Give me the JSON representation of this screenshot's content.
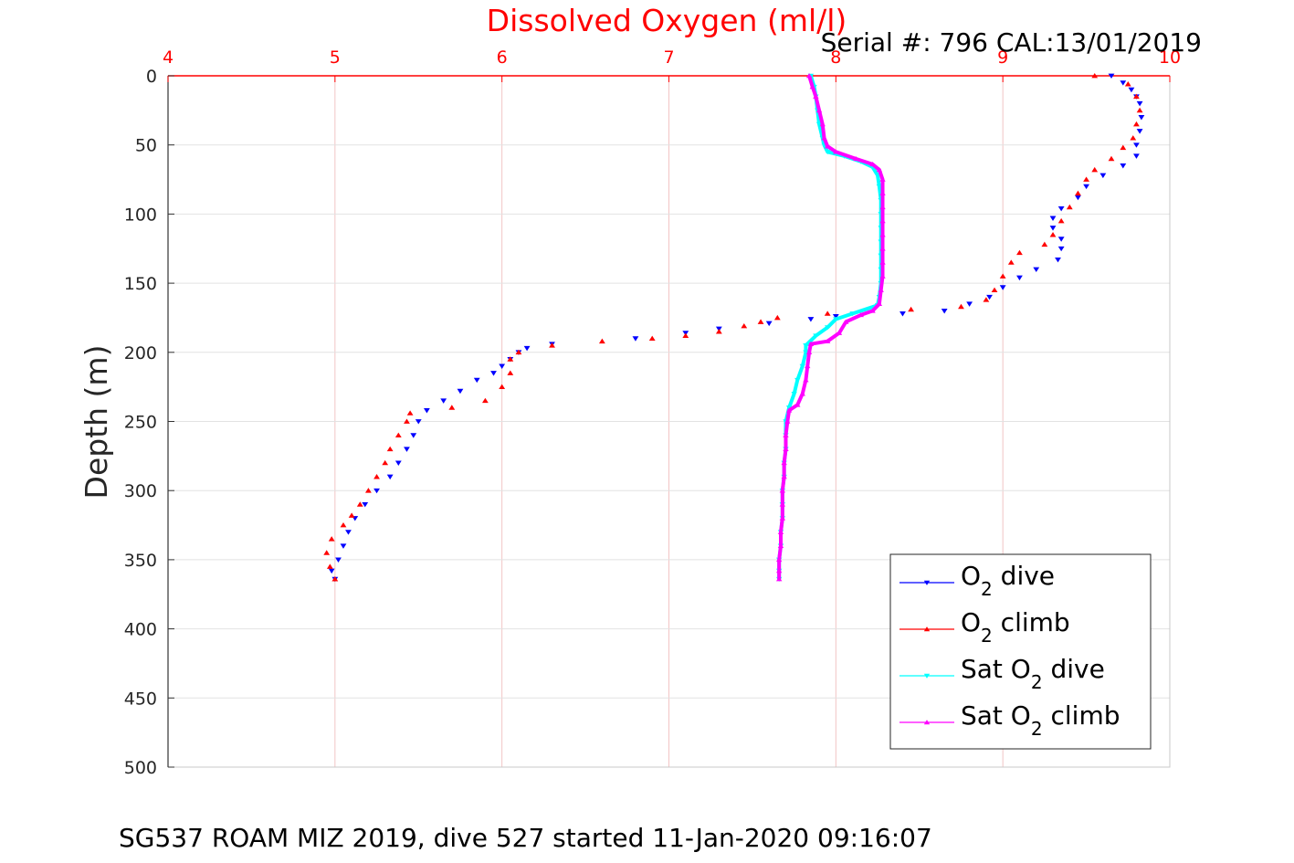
{
  "chart_data": {
    "type": "scatter",
    "title": "Dissolved Oxygen (ml/l)",
    "serial": "Serial #: 796  CAL:13/01/2019",
    "ylabel": "Depth (m)",
    "footer": "SG537 ROAM MIZ 2019, dive 527 started 11-Jan-2020 09:16:07",
    "xlim": [
      4,
      10
    ],
    "ylim": [
      0,
      500
    ],
    "y_reversed": true,
    "x_axis_position": "top",
    "x_ticks": [
      "4",
      "5",
      "6",
      "7",
      "8",
      "9",
      "10"
    ],
    "y_ticks": [
      "0",
      "50",
      "100",
      "150",
      "200",
      "250",
      "300",
      "350",
      "400",
      "450",
      "500"
    ],
    "grid": true,
    "legend_position": "bottom-right",
    "colors": {
      "title": "#ff0000",
      "x_ticks": "#ff0000",
      "grid": "#f2c5c5",
      "grid_h": "#e2e2e2"
    },
    "series": [
      {
        "name": "O2 dive",
        "label_parts": [
          "O",
          "2",
          " dive"
        ],
        "color": "#0000ff",
        "marker": "triangle-down",
        "points": [
          [
            9.65,
            0
          ],
          [
            9.72,
            5
          ],
          [
            9.77,
            10
          ],
          [
            9.8,
            15
          ],
          [
            9.82,
            20
          ],
          [
            9.83,
            30
          ],
          [
            9.82,
            40
          ],
          [
            9.8,
            50
          ],
          [
            9.8,
            58
          ],
          [
            9.72,
            65
          ],
          [
            9.6,
            72
          ],
          [
            9.5,
            80
          ],
          [
            9.45,
            88
          ],
          [
            9.35,
            96
          ],
          [
            9.3,
            103
          ],
          [
            9.3,
            110
          ],
          [
            9.35,
            118
          ],
          [
            9.35,
            125
          ],
          [
            9.33,
            133
          ],
          [
            9.2,
            140
          ],
          [
            9.1,
            146
          ],
          [
            9.0,
            153
          ],
          [
            8.92,
            160
          ],
          [
            8.8,
            165
          ],
          [
            8.65,
            170
          ],
          [
            8.4,
            172
          ],
          [
            8.0,
            174
          ],
          [
            7.85,
            176
          ],
          [
            7.6,
            179
          ],
          [
            7.3,
            183
          ],
          [
            7.1,
            186
          ],
          [
            6.8,
            190
          ],
          [
            6.3,
            194
          ],
          [
            6.15,
            197
          ],
          [
            6.1,
            200
          ],
          [
            6.05,
            205
          ],
          [
            6.0,
            210
          ],
          [
            5.95,
            215
          ],
          [
            5.85,
            220
          ],
          [
            5.75,
            228
          ],
          [
            5.65,
            235
          ],
          [
            5.55,
            242
          ],
          [
            5.5,
            250
          ],
          [
            5.47,
            260
          ],
          [
            5.43,
            270
          ],
          [
            5.38,
            280
          ],
          [
            5.33,
            290
          ],
          [
            5.25,
            300
          ],
          [
            5.18,
            310
          ],
          [
            5.12,
            320
          ],
          [
            5.08,
            330
          ],
          [
            5.05,
            340
          ],
          [
            5.02,
            350
          ],
          [
            4.98,
            358
          ],
          [
            5.0,
            364
          ]
        ]
      },
      {
        "name": "O2 climb",
        "label_parts": [
          "O",
          "2",
          " climb"
        ],
        "color": "#ff0000",
        "marker": "triangle-up",
        "points": [
          [
            5.0,
            364
          ],
          [
            4.97,
            355
          ],
          [
            4.95,
            345
          ],
          [
            4.98,
            335
          ],
          [
            5.05,
            325
          ],
          [
            5.1,
            318
          ],
          [
            5.15,
            310
          ],
          [
            5.2,
            300
          ],
          [
            5.25,
            290
          ],
          [
            5.3,
            280
          ],
          [
            5.33,
            270
          ],
          [
            5.38,
            260
          ],
          [
            5.43,
            250
          ],
          [
            5.45,
            244
          ],
          [
            5.7,
            240
          ],
          [
            5.9,
            235
          ],
          [
            6.0,
            225
          ],
          [
            6.05,
            215
          ],
          [
            6.05,
            205
          ],
          [
            6.1,
            200
          ],
          [
            6.3,
            195
          ],
          [
            6.6,
            192
          ],
          [
            6.9,
            190
          ],
          [
            7.1,
            188
          ],
          [
            7.3,
            185
          ],
          [
            7.45,
            181
          ],
          [
            7.55,
            178
          ],
          [
            7.65,
            175
          ],
          [
            7.95,
            172
          ],
          [
            8.45,
            169
          ],
          [
            8.75,
            167
          ],
          [
            8.9,
            162
          ],
          [
            8.95,
            155
          ],
          [
            9.0,
            145
          ],
          [
            9.05,
            135
          ],
          [
            9.1,
            128
          ],
          [
            9.25,
            122
          ],
          [
            9.3,
            115
          ],
          [
            9.35,
            105
          ],
          [
            9.4,
            95
          ],
          [
            9.45,
            85
          ],
          [
            9.5,
            75
          ],
          [
            9.55,
            68
          ],
          [
            9.65,
            60
          ],
          [
            9.72,
            52
          ],
          [
            9.78,
            45
          ],
          [
            9.8,
            35
          ],
          [
            9.82,
            25
          ],
          [
            9.8,
            15
          ],
          [
            9.75,
            6
          ],
          [
            9.55,
            0
          ]
        ]
      },
      {
        "name": "Sat O2 dive",
        "label_parts": [
          "Sat O",
          "2",
          " dive"
        ],
        "color": "#00ffff",
        "marker": "triangle-down",
        "points": [
          [
            7.85,
            0
          ],
          [
            7.87,
            8
          ],
          [
            7.88,
            15
          ],
          [
            7.89,
            25
          ],
          [
            7.9,
            35
          ],
          [
            7.92,
            45
          ],
          [
            7.93,
            50
          ],
          [
            7.95,
            55
          ],
          [
            8.05,
            58
          ],
          [
            8.15,
            62
          ],
          [
            8.22,
            66
          ],
          [
            8.25,
            72
          ],
          [
            8.26,
            80
          ],
          [
            8.27,
            90
          ],
          [
            8.27,
            100
          ],
          [
            8.27,
            110
          ],
          [
            8.27,
            120
          ],
          [
            8.27,
            130
          ],
          [
            8.27,
            140
          ],
          [
            8.27,
            150
          ],
          [
            8.26,
            160
          ],
          [
            8.25,
            166
          ],
          [
            8.1,
            172
          ],
          [
            8.0,
            176
          ],
          [
            7.95,
            182
          ],
          [
            7.88,
            188
          ],
          [
            7.82,
            195
          ],
          [
            7.82,
            200
          ],
          [
            7.8,
            210
          ],
          [
            7.77,
            220
          ],
          [
            7.75,
            230
          ],
          [
            7.72,
            240
          ],
          [
            7.7,
            250
          ],
          [
            7.7,
            260
          ],
          [
            7.7,
            270
          ],
          [
            7.69,
            280
          ],
          [
            7.69,
            290
          ],
          [
            7.68,
            300
          ],
          [
            7.68,
            310
          ],
          [
            7.68,
            320
          ],
          [
            7.67,
            330
          ],
          [
            7.67,
            340
          ],
          [
            7.66,
            350
          ],
          [
            7.66,
            358
          ],
          [
            7.66,
            364
          ]
        ]
      },
      {
        "name": "Sat O2 climb",
        "label_parts": [
          "Sat O",
          "2",
          " climb"
        ],
        "color": "#ff00ff",
        "marker": "triangle-up",
        "points": [
          [
            7.66,
            364
          ],
          [
            7.66,
            358
          ],
          [
            7.66,
            350
          ],
          [
            7.67,
            340
          ],
          [
            7.67,
            330
          ],
          [
            7.68,
            320
          ],
          [
            7.68,
            310
          ],
          [
            7.68,
            300
          ],
          [
            7.69,
            290
          ],
          [
            7.69,
            280
          ],
          [
            7.7,
            270
          ],
          [
            7.7,
            260
          ],
          [
            7.71,
            250
          ],
          [
            7.72,
            242
          ],
          [
            7.77,
            238
          ],
          [
            7.8,
            230
          ],
          [
            7.82,
            220
          ],
          [
            7.83,
            210
          ],
          [
            7.84,
            200
          ],
          [
            7.85,
            194
          ],
          [
            7.95,
            192
          ],
          [
            8.02,
            186
          ],
          [
            8.06,
            178
          ],
          [
            8.15,
            173
          ],
          [
            8.22,
            170
          ],
          [
            8.26,
            165
          ],
          [
            8.27,
            155
          ],
          [
            8.28,
            145
          ],
          [
            8.28,
            135
          ],
          [
            8.28,
            125
          ],
          [
            8.28,
            115
          ],
          [
            8.28,
            105
          ],
          [
            8.28,
            95
          ],
          [
            8.28,
            85
          ],
          [
            8.28,
            75
          ],
          [
            8.26,
            68
          ],
          [
            8.22,
            64
          ],
          [
            8.12,
            60
          ],
          [
            8.0,
            55
          ],
          [
            7.95,
            51
          ],
          [
            7.93,
            45
          ],
          [
            7.92,
            35
          ],
          [
            7.9,
            25
          ],
          [
            7.88,
            15
          ],
          [
            7.86,
            8
          ],
          [
            7.84,
            0
          ]
        ]
      }
    ]
  }
}
